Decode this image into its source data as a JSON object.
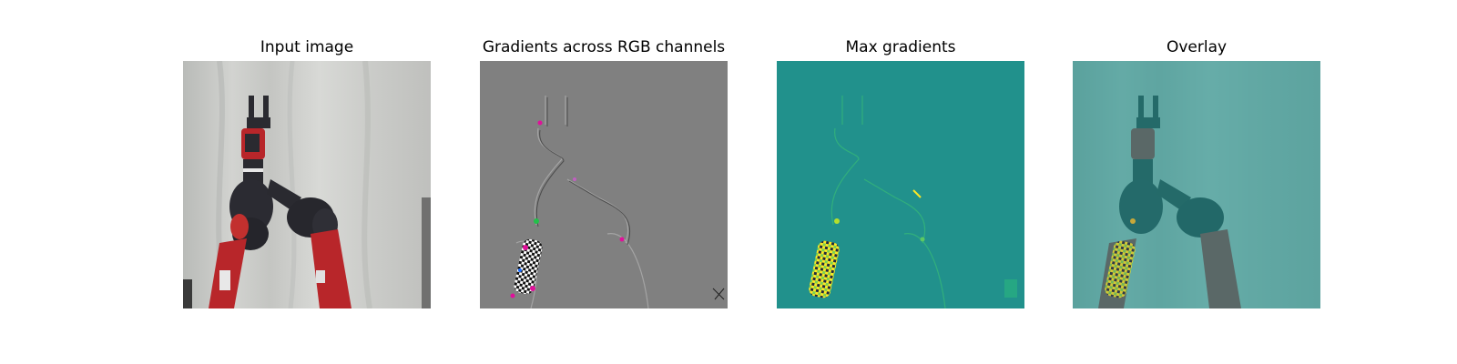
{
  "figure": {
    "panels": [
      {
        "title": "Input image"
      },
      {
        "title": "Gradients across RGB channels"
      },
      {
        "title": "Max gradients"
      },
      {
        "title": "Overlay"
      }
    ]
  },
  "colors": {
    "backdrop": "#cfd0cd",
    "robot_red": "#b8262a",
    "robot_dark": "#2a2a30",
    "gradient_gray": "#808080",
    "viridis_teal": "#21918c",
    "viridis_yellow": "#fde725",
    "magenta": "#e0109a"
  }
}
